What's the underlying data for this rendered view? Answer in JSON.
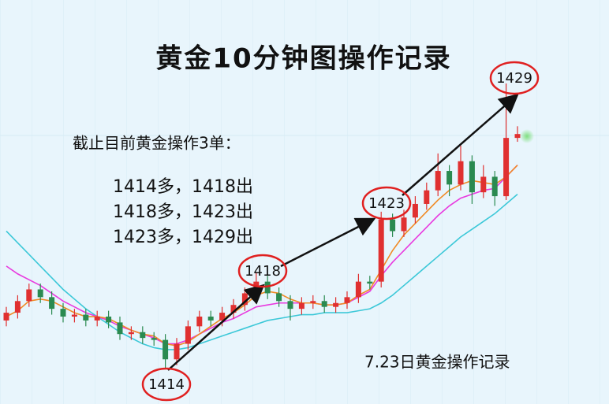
{
  "chart_data": {
    "type": "candlestick",
    "title": "黄金10分钟图操作记录",
    "subtitle": "截止目前黄金操作3单：",
    "operations": [
      "1414多，1418出",
      "1418多，1423出",
      "1423多，1429出"
    ],
    "footnote": "7.23日黄金操作记录",
    "annotations": [
      "1414",
      "1418",
      "1423",
      "1429"
    ],
    "ylim": [
      1412.3,
      1433.1
    ],
    "up_color": "#e03030",
    "down_color": "#2a8a50",
    "candles": [
      [
        1416.6,
        1417.3,
        1416.3,
        1417.0
      ],
      [
        1417.0,
        1417.9,
        1416.7,
        1417.6
      ],
      [
        1417.6,
        1418.5,
        1417.3,
        1418.2
      ],
      [
        1418.2,
        1418.5,
        1417.5,
        1417.8
      ],
      [
        1417.8,
        1418.1,
        1416.9,
        1417.2
      ],
      [
        1417.2,
        1417.5,
        1416.5,
        1416.8
      ],
      [
        1416.8,
        1417.2,
        1416.5,
        1416.9
      ],
      [
        1416.9,
        1417.2,
        1416.3,
        1416.6
      ],
      [
        1416.6,
        1417.1,
        1416.3,
        1416.8
      ],
      [
        1416.8,
        1417.1,
        1416.2,
        1416.5
      ],
      [
        1416.5,
        1416.8,
        1415.6,
        1415.9
      ],
      [
        1415.9,
        1416.3,
        1415.6,
        1416.0
      ],
      [
        1416.0,
        1416.3,
        1415.4,
        1415.7
      ],
      [
        1415.7,
        1416.0,
        1415.3,
        1415.6
      ],
      [
        1415.6,
        1415.9,
        1414.1,
        1414.6
      ],
      [
        1414.6,
        1415.7,
        1414.3,
        1415.4
      ],
      [
        1415.4,
        1416.6,
        1415.1,
        1416.3
      ],
      [
        1416.3,
        1417.1,
        1416.0,
        1416.8
      ],
      [
        1416.8,
        1417.1,
        1416.3,
        1416.6
      ],
      [
        1416.6,
        1417.3,
        1416.3,
        1417.0
      ],
      [
        1417.0,
        1417.7,
        1416.7,
        1417.4
      ],
      [
        1417.4,
        1418.3,
        1417.1,
        1418.0
      ],
      [
        1418.0,
        1419.1,
        1417.7,
        1418.6
      ],
      [
        1418.6,
        1418.9,
        1417.7,
        1418.0
      ],
      [
        1418.0,
        1418.3,
        1417.3,
        1417.6
      ],
      [
        1417.6,
        1417.9,
        1416.6,
        1417.2
      ],
      [
        1417.2,
        1417.8,
        1416.9,
        1417.5
      ],
      [
        1417.5,
        1417.9,
        1417.2,
        1417.6
      ],
      [
        1417.6,
        1417.9,
        1417.0,
        1417.3
      ],
      [
        1417.3,
        1417.8,
        1417.0,
        1417.5
      ],
      [
        1417.5,
        1418.1,
        1417.2,
        1417.8
      ],
      [
        1417.8,
        1419.0,
        1417.5,
        1418.6
      ],
      [
        1418.6,
        1418.9,
        1418.2,
        1418.5
      ],
      [
        1418.6,
        1422.2,
        1418.3,
        1421.8
      ],
      [
        1421.8,
        1422.1,
        1420.9,
        1421.2
      ],
      [
        1421.2,
        1422.3,
        1420.9,
        1421.9
      ],
      [
        1421.9,
        1423.0,
        1421.6,
        1422.6
      ],
      [
        1422.6,
        1423.7,
        1422.3,
        1423.3
      ],
      [
        1423.3,
        1425.2,
        1423.0,
        1424.3
      ],
      [
        1424.3,
        1424.6,
        1423.0,
        1423.6
      ],
      [
        1423.6,
        1425.6,
        1423.3,
        1424.8
      ],
      [
        1424.8,
        1425.1,
        1422.6,
        1423.2
      ],
      [
        1423.2,
        1424.6,
        1422.9,
        1424.0
      ],
      [
        1424.0,
        1424.3,
        1422.5,
        1423.0
      ],
      [
        1423.0,
        1428.8,
        1422.8,
        1426.0
      ],
      [
        1426.0,
        1426.6,
        1425.8,
        1426.2
      ]
    ],
    "series": [
      {
        "color": "#3cc8d8",
        "values": [
          1421.2,
          1420.6,
          1420.0,
          1419.4,
          1418.8,
          1418.2,
          1417.7,
          1417.2,
          1416.8,
          1416.4,
          1416.0,
          1415.7,
          1415.4,
          1415.2,
          1415.1,
          1415.1,
          1415.2,
          1415.4,
          1415.6,
          1415.8,
          1416.0,
          1416.2,
          1416.4,
          1416.6,
          1416.7,
          1416.8,
          1416.9,
          1416.9,
          1417.0,
          1417.0,
          1417.0,
          1417.1,
          1417.2,
          1417.5,
          1417.9,
          1418.4,
          1418.9,
          1419.4,
          1419.9,
          1420.4,
          1420.9,
          1421.3,
          1421.7,
          1422.1,
          1422.6,
          1423.1
        ]
      },
      {
        "color": "#e83adf",
        "values": [
          1419.4,
          1419.0,
          1418.7,
          1418.4,
          1418.0,
          1417.6,
          1417.3,
          1417.0,
          1416.8,
          1416.6,
          1416.3,
          1416.1,
          1415.9,
          1415.7,
          1415.4,
          1415.4,
          1415.6,
          1415.9,
          1416.2,
          1416.5,
          1416.7,
          1417.0,
          1417.3,
          1417.4,
          1417.5,
          1417.5,
          1417.5,
          1417.5,
          1417.4,
          1417.4,
          1417.5,
          1417.8,
          1418.1,
          1418.9,
          1419.6,
          1420.2,
          1420.8,
          1421.4,
          1422.0,
          1422.5,
          1422.9,
          1423.1,
          1423.3,
          1423.4,
          1424.0,
          1424.6
        ]
      },
      {
        "color": "#f08a24",
        "values": [
          1416.8,
          1417.1,
          1417.6,
          1417.7,
          1417.6,
          1417.3,
          1417.0,
          1416.8,
          1416.8,
          1416.7,
          1416.4,
          1416.1,
          1415.9,
          1415.8,
          1415.4,
          1415.3,
          1415.5,
          1415.9,
          1416.3,
          1416.7,
          1417.0,
          1417.4,
          1417.9,
          1418.1,
          1418.0,
          1417.7,
          1417.5,
          1417.5,
          1417.4,
          1417.4,
          1417.5,
          1417.9,
          1418.2,
          1419.2,
          1420.2,
          1421.0,
          1421.6,
          1422.2,
          1422.8,
          1423.3,
          1423.6,
          1423.8,
          1423.7,
          1423.6,
          1424.0,
          1424.6
        ]
      }
    ]
  }
}
